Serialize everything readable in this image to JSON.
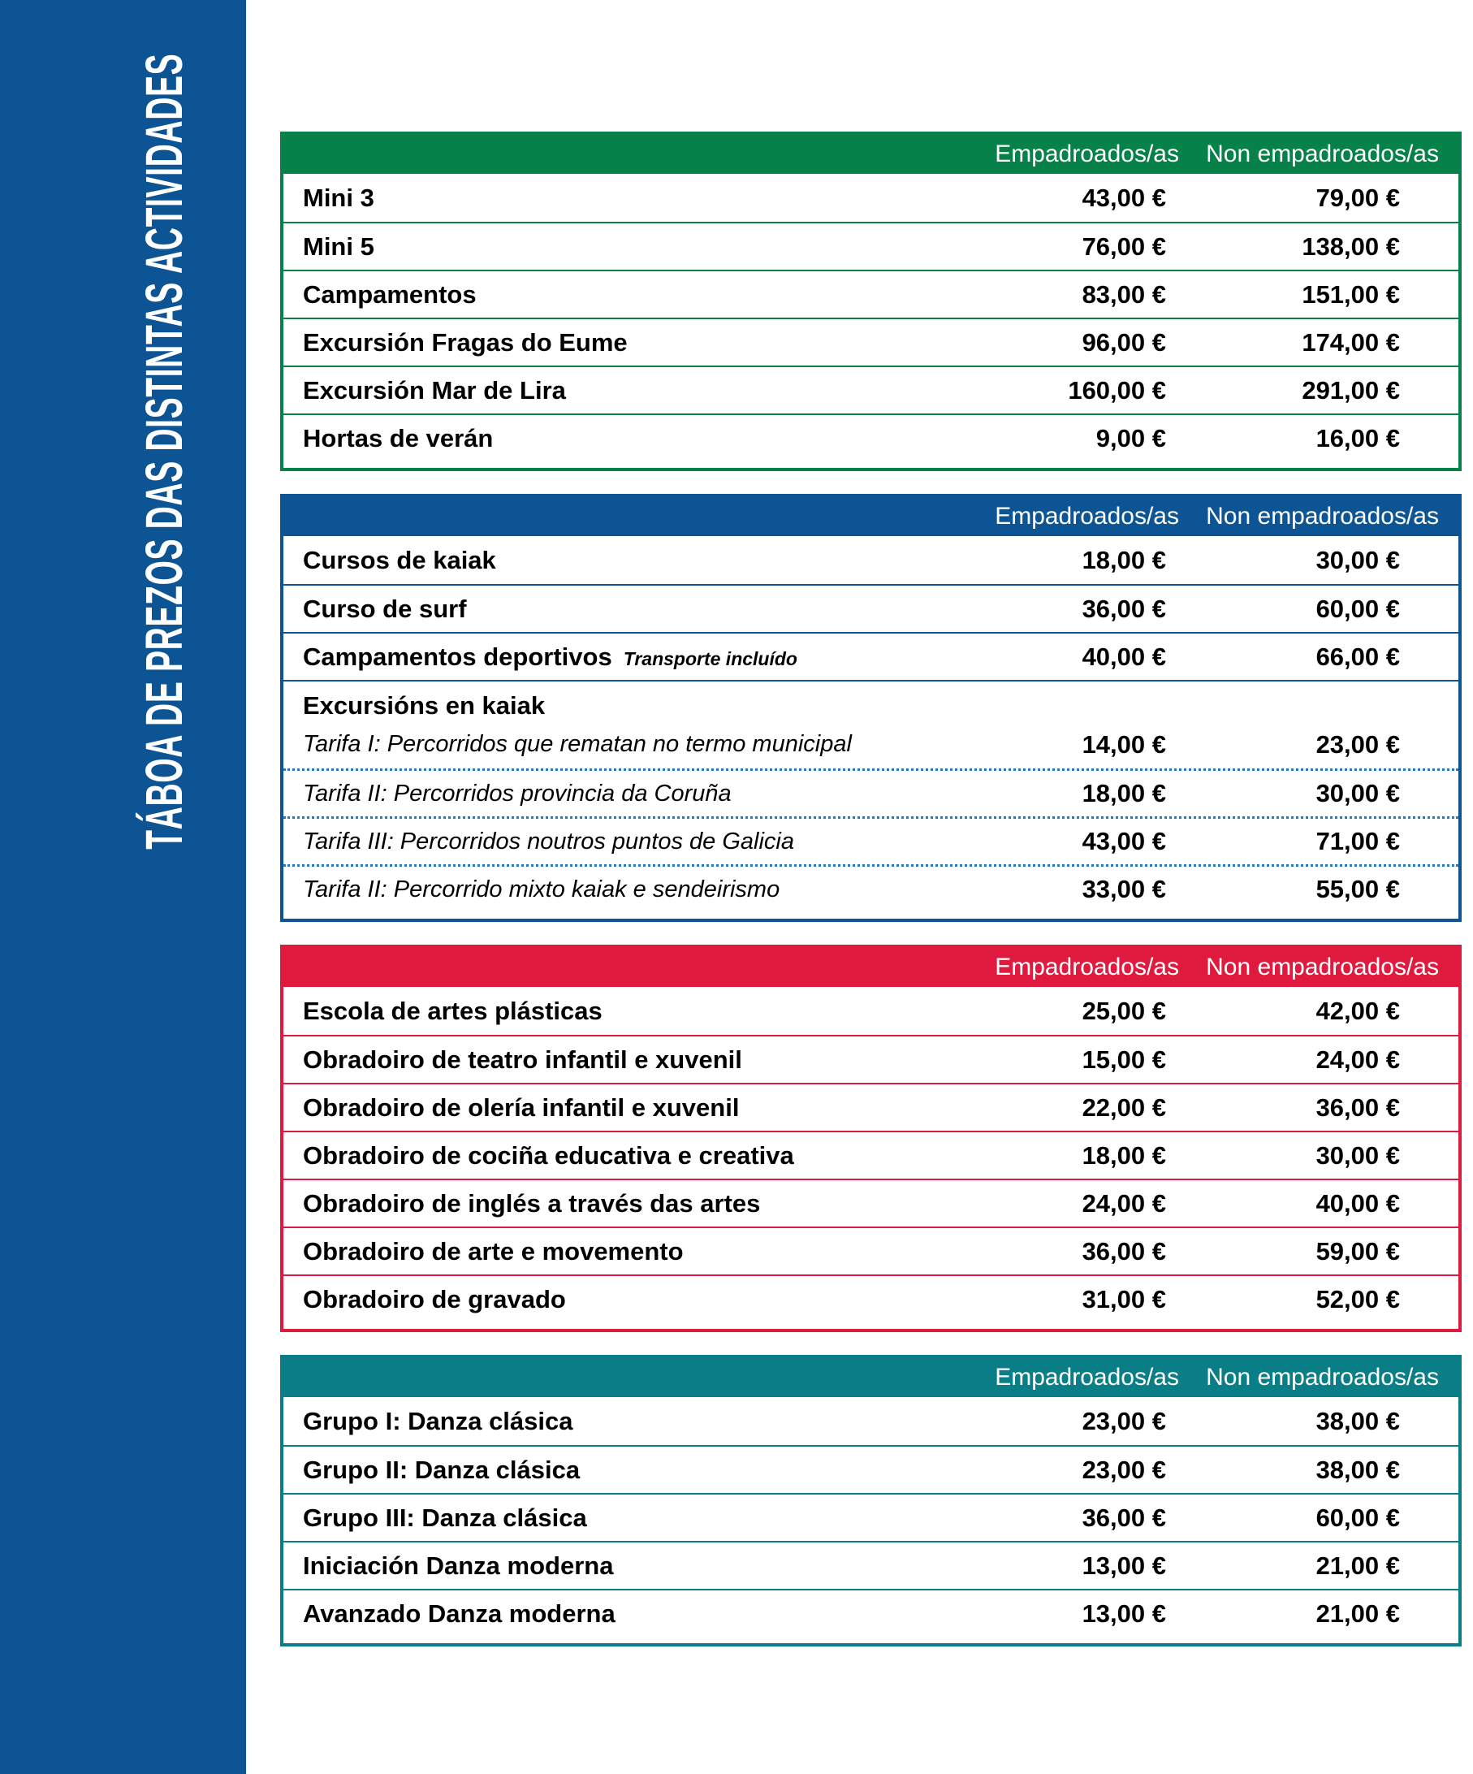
{
  "sidebar": {
    "title": "TÁBOA DE PREZOS DAS DISTINTAS ACTIVIDADES",
    "bg": "#0d5494"
  },
  "columns": {
    "resident": "Empadroados/as",
    "non_resident": "Non empadroados/as"
  },
  "tables": [
    {
      "name": "campamentos",
      "theme": "green",
      "color": "#068149",
      "rows": [
        {
          "type": "simple",
          "label": "Mini 3",
          "emp": "43,00 €",
          "non": "79,00 €"
        },
        {
          "type": "simple",
          "label": "Mini 5",
          "emp": "76,00 €",
          "non": "138,00 €"
        },
        {
          "type": "simple",
          "label": "Campamentos",
          "emp": "83,00 €",
          "non": "151,00 €"
        },
        {
          "type": "simple",
          "label": "Excursión Fragas do Eume",
          "emp": "96,00 €",
          "non": "174,00 €"
        },
        {
          "type": "simple",
          "label": "Excursión Mar de Lira",
          "emp": "160,00 €",
          "non": "291,00 €"
        },
        {
          "type": "simple",
          "label": "Hortas de verán",
          "emp": "9,00 €",
          "non": "16,00 €"
        }
      ]
    },
    {
      "name": "deportes",
      "theme": "blue",
      "color": "#0d5494",
      "dot": "#2e75b6",
      "rows": [
        {
          "type": "simple",
          "label": "Cursos de kaiak",
          "emp": "18,00 €",
          "non": "30,00 €"
        },
        {
          "type": "simple",
          "label": "Curso de surf",
          "emp": "36,00 €",
          "non": "60,00 €"
        },
        {
          "type": "simple",
          "label": "Campamentos deportivos",
          "note": "Transporte incluído",
          "emp": "40,00 €",
          "non": "66,00 €"
        },
        {
          "type": "heading",
          "label": "Excursións en kaiak"
        },
        {
          "type": "sub",
          "label": "Tarifa I: Percorridos que rematan no termo municipal",
          "emp": "14,00 €",
          "non": "23,00 €"
        },
        {
          "type": "sub",
          "label": "Tarifa II: Percorridos provincia da Coruña",
          "emp": "18,00 €",
          "non": "30,00 €"
        },
        {
          "type": "sub",
          "label": "Tarifa III: Percorridos noutros puntos de Galicia",
          "emp": "43,00 €",
          "non": "71,00 €"
        },
        {
          "type": "sub",
          "label": "Tarifa II: Percorrido mixto kaiak e sendeirismo",
          "emp": "33,00 €",
          "non": "55,00 €"
        }
      ]
    },
    {
      "name": "artes",
      "theme": "red",
      "color": "#e0193f",
      "rows": [
        {
          "type": "simple",
          "label": "Escola de artes plásticas",
          "emp": "25,00 €",
          "non": "42,00 €"
        },
        {
          "type": "simple",
          "label": "Obradoiro de teatro infantil e xuvenil",
          "emp": "15,00 €",
          "non": "24,00 €"
        },
        {
          "type": "simple",
          "label": "Obradoiro de olería infantil e xuvenil",
          "emp": "22,00 €",
          "non": "36,00 €"
        },
        {
          "type": "simple",
          "label": "Obradoiro de cociña educativa e creativa",
          "emp": "18,00 €",
          "non": "30,00 €"
        },
        {
          "type": "simple",
          "label": "Obradoiro de inglés a través das artes",
          "emp": "24,00 €",
          "non": "40,00 €"
        },
        {
          "type": "simple",
          "label": "Obradoiro de arte e movemento",
          "emp": "36,00 €",
          "non": "59,00 €"
        },
        {
          "type": "simple",
          "label": "Obradoiro de gravado",
          "emp": "31,00 €",
          "non": "52,00 €"
        }
      ]
    },
    {
      "name": "danza",
      "theme": "teal",
      "color": "#0a7e86",
      "rows": [
        {
          "type": "simple",
          "label": "Grupo I: Danza clásica",
          "emp": "23,00 €",
          "non": "38,00 €"
        },
        {
          "type": "simple",
          "label": "Grupo II: Danza clásica",
          "emp": "23,00 €",
          "non": "38,00 €"
        },
        {
          "type": "simple",
          "label": "Grupo III: Danza clásica",
          "emp": "36,00 €",
          "non": "60,00 €"
        },
        {
          "type": "simple",
          "label": "Iniciación Danza moderna",
          "emp": "13,00 €",
          "non": "21,00 €"
        },
        {
          "type": "simple",
          "label": "Avanzado Danza moderna",
          "emp": "13,00 €",
          "non": "21,00 €"
        }
      ]
    }
  ]
}
